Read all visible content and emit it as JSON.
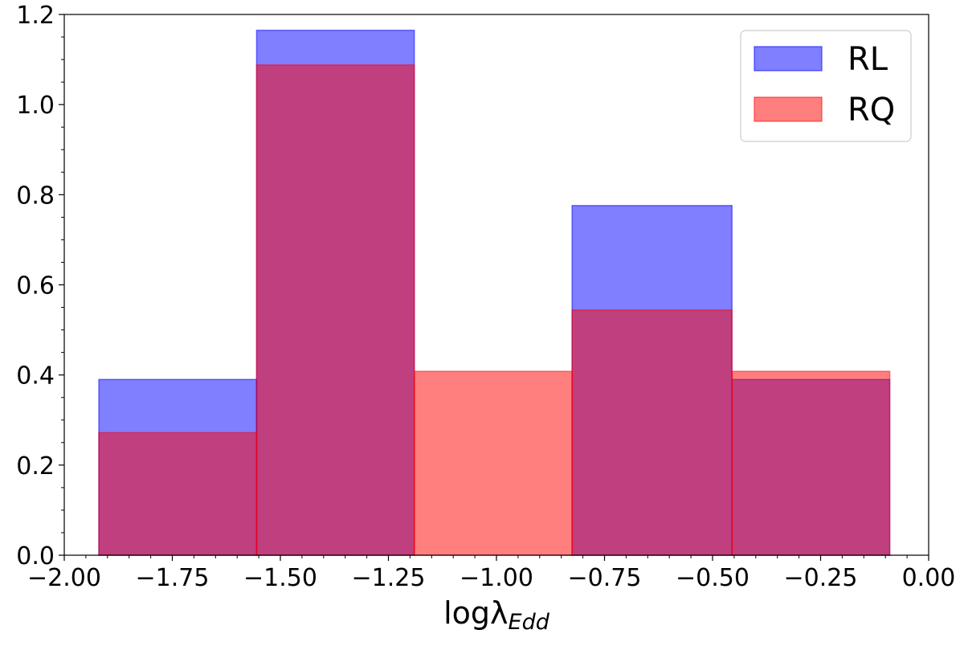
{
  "chart_data": {
    "type": "bar",
    "title": "",
    "xlabel_main": "logλ",
    "xlabel_sub": "Edd",
    "ylabel": "",
    "xlim": [
      -2.0,
      0.0
    ],
    "ylim": [
      0.0,
      1.2
    ],
    "bin_edges": [
      -1.92,
      -1.555,
      -1.19,
      -0.825,
      -0.455,
      -0.09
    ],
    "xticks": [
      -2.0,
      -1.75,
      -1.5,
      -1.25,
      -1.0,
      -0.75,
      -0.5,
      -0.25,
      0.0
    ],
    "xtick_labels": [
      "−2.00",
      "−1.75",
      "−1.50",
      "−1.25",
      "−1.00",
      "−0.75",
      "−0.50",
      "−0.25",
      "0.00"
    ],
    "yticks": [
      0.0,
      0.2,
      0.4,
      0.6,
      0.8,
      1.0,
      1.2
    ],
    "ytick_labels": [
      "0.0",
      "0.2",
      "0.4",
      "0.6",
      "0.8",
      "1.0",
      "1.2"
    ],
    "series": [
      {
        "name": "RL",
        "values": [
          0.39,
          1.165,
          0.0,
          0.776,
          0.39
        ],
        "color": "#0000ff",
        "alpha": 0.5
      },
      {
        "name": "RQ",
        "values": [
          0.272,
          1.088,
          0.408,
          0.544,
          0.408
        ],
        "color": "#ff0000",
        "alpha": 0.5
      }
    ],
    "legend_position": "top-right",
    "grid": false
  }
}
